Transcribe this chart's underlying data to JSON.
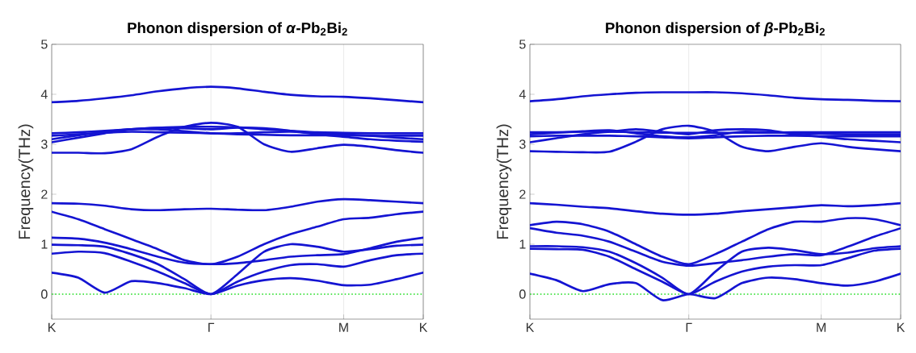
{
  "chart_data": [
    {
      "type": "line",
      "title": "Phonon dispersion of *α*-Pb$_{2}$Bi$_{2}$",
      "ylabel": "Frequency(THz)",
      "categories": [
        "K",
        null,
        null,
        null,
        null,
        null,
        "Γ",
        null,
        null,
        null,
        null,
        "M",
        null,
        null,
        "K"
      ],
      "ylim": [
        -0.5,
        5
      ],
      "yticks": [
        0,
        1,
        2,
        3,
        4,
        5
      ],
      "grid": "x",
      "line_style": "solid",
      "ref_lines": [
        {
          "axis": "y",
          "value": 0,
          "color": "#22dd22",
          "line_style": "dotted"
        }
      ],
      "series": [
        {
          "color": "#1414d2",
          "values": [
            0.43,
            0.33,
            0.03,
            0.26,
            0.22,
            0.12,
            0,
            0.17,
            0.28,
            0.32,
            0.27,
            0.18,
            0.19,
            0.3,
            0.43
          ]
        },
        {
          "color": "#1414d2",
          "values": [
            0.81,
            0.85,
            0.82,
            0.65,
            0.45,
            0.22,
            0,
            0.25,
            0.45,
            0.58,
            0.6,
            0.55,
            0.68,
            0.78,
            0.81
          ]
        },
        {
          "color": "#1414d2",
          "values": [
            0.99,
            0.98,
            0.95,
            0.8,
            0.6,
            0.3,
            0,
            0.4,
            0.85,
            1.0,
            0.95,
            0.85,
            0.9,
            0.97,
            0.99
          ]
        },
        {
          "color": "#1414d2",
          "values": [
            1.13,
            1.11,
            1.03,
            0.9,
            0.75,
            0.63,
            0.6,
            0.62,
            0.68,
            0.75,
            0.78,
            0.8,
            0.92,
            1.05,
            1.13
          ]
        },
        {
          "color": "#1414d2",
          "values": [
            1.65,
            1.5,
            1.3,
            1.1,
            0.9,
            0.68,
            0.6,
            0.75,
            1.0,
            1.2,
            1.35,
            1.5,
            1.53,
            1.6,
            1.65
          ]
        },
        {
          "color": "#1414d2",
          "values": [
            1.82,
            1.81,
            1.77,
            1.7,
            1.68,
            1.7,
            1.71,
            1.69,
            1.68,
            1.75,
            1.85,
            1.9,
            1.88,
            1.85,
            1.82
          ]
        },
        {
          "color": "#1414d2",
          "values": [
            2.83,
            2.83,
            2.82,
            2.9,
            3.15,
            3.35,
            3.43,
            3.35,
            3.0,
            2.85,
            2.92,
            2.99,
            2.95,
            2.88,
            2.83
          ]
        },
        {
          "color": "#1414d2",
          "values": [
            3.04,
            3.13,
            3.22,
            3.3,
            3.33,
            3.32,
            3.3,
            3.33,
            3.32,
            3.27,
            3.2,
            3.15,
            3.1,
            3.07,
            3.05
          ]
        },
        {
          "color": "#1414d2",
          "values": [
            3.1,
            3.18,
            3.25,
            3.3,
            3.3,
            3.26,
            3.22,
            3.22,
            3.24,
            3.25,
            3.22,
            3.2,
            3.17,
            3.13,
            3.1
          ]
        },
        {
          "color": "#1414d2",
          "values": [
            3.17,
            3.2,
            3.23,
            3.25,
            3.24,
            3.23,
            3.22,
            3.2,
            3.19,
            3.18,
            3.18,
            3.18,
            3.17,
            3.17,
            3.17
          ]
        },
        {
          "color": "#1414d2",
          "values": [
            3.22,
            3.24,
            3.27,
            3.3,
            3.33,
            3.35,
            3.35,
            3.34,
            3.3,
            3.27,
            3.24,
            3.23,
            3.22,
            3.22,
            3.22
          ]
        },
        {
          "color": "#1414d2",
          "values": [
            3.84,
            3.87,
            3.92,
            3.98,
            4.06,
            4.12,
            4.15,
            4.12,
            4.05,
            3.99,
            3.96,
            3.95,
            3.92,
            3.88,
            3.84
          ]
        }
      ]
    },
    {
      "type": "line",
      "title": "Phonon dispersion of *β*-Pb$_{2}$Bi$_{2}$",
      "ylabel": "Frequency(THz)",
      "categories": [
        "K",
        null,
        null,
        null,
        null,
        null,
        "Γ",
        null,
        null,
        null,
        null,
        "M",
        null,
        null,
        "K"
      ],
      "ylim": [
        -0.5,
        5
      ],
      "yticks": [
        0,
        1,
        2,
        3,
        4,
        5
      ],
      "grid": "x",
      "line_style": "solid",
      "ref_lines": [
        {
          "axis": "y",
          "value": 0,
          "color": "#22dd22",
          "line_style": "dotted"
        }
      ],
      "series": [
        {
          "color": "#1414d2",
          "values": [
            0.41,
            0.28,
            0.06,
            0.2,
            0.22,
            -0.12,
            0,
            -0.08,
            0.22,
            0.33,
            0.3,
            0.22,
            0.17,
            0.25,
            0.41
          ]
        },
        {
          "color": "#1414d2",
          "values": [
            0.91,
            0.9,
            0.89,
            0.75,
            0.5,
            0.25,
            0,
            0.25,
            0.45,
            0.55,
            0.58,
            0.58,
            0.72,
            0.87,
            0.91
          ]
        },
        {
          "color": "#1414d2",
          "values": [
            0.96,
            0.96,
            0.94,
            0.85,
            0.62,
            0.33,
            0,
            0.45,
            0.85,
            0.93,
            0.88,
            0.8,
            0.83,
            0.92,
            0.96
          ]
        },
        {
          "color": "#1414d2",
          "values": [
            1.32,
            1.23,
            1.17,
            1.05,
            0.85,
            0.65,
            0.57,
            0.62,
            0.68,
            0.75,
            0.8,
            0.78,
            0.95,
            1.15,
            1.32
          ]
        },
        {
          "color": "#1414d2",
          "values": [
            1.38,
            1.45,
            1.4,
            1.25,
            1.0,
            0.75,
            0.6,
            0.8,
            1.05,
            1.3,
            1.45,
            1.45,
            1.52,
            1.5,
            1.38
          ]
        },
        {
          "color": "#1414d2",
          "values": [
            1.82,
            1.79,
            1.75,
            1.72,
            1.66,
            1.61,
            1.59,
            1.61,
            1.66,
            1.7,
            1.74,
            1.78,
            1.76,
            1.78,
            1.82
          ]
        },
        {
          "color": "#1414d2",
          "values": [
            2.86,
            2.85,
            2.84,
            2.85,
            3.05,
            3.3,
            3.37,
            3.25,
            2.95,
            2.86,
            2.95,
            3.02,
            2.95,
            2.9,
            2.86
          ]
        },
        {
          "color": "#1414d2",
          "values": [
            3.04,
            3.12,
            3.2,
            3.25,
            3.3,
            3.25,
            3.2,
            3.28,
            3.3,
            3.28,
            3.2,
            3.15,
            3.1,
            3.07,
            3.04
          ]
        },
        {
          "color": "#1414d2",
          "values": [
            3.2,
            3.23,
            3.26,
            3.28,
            3.22,
            3.16,
            3.14,
            3.18,
            3.25,
            3.24,
            3.22,
            3.21,
            3.2,
            3.2,
            3.2
          ]
        },
        {
          "color": "#1414d2",
          "values": [
            3.16,
            3.17,
            3.17,
            3.17,
            3.16,
            3.14,
            3.12,
            3.14,
            3.16,
            3.17,
            3.17,
            3.16,
            3.16,
            3.16,
            3.16
          ]
        },
        {
          "color": "#1414d2",
          "values": [
            3.24,
            3.24,
            3.25,
            3.25,
            3.24,
            3.23,
            3.23,
            3.23,
            3.23,
            3.23,
            3.24,
            3.24,
            3.24,
            3.24,
            3.24
          ]
        },
        {
          "color": "#1414d2",
          "values": [
            3.86,
            3.9,
            3.96,
            4.0,
            4.03,
            4.04,
            4.04,
            4.04,
            4.02,
            3.98,
            3.93,
            3.9,
            3.89,
            3.87,
            3.86
          ]
        }
      ]
    }
  ]
}
